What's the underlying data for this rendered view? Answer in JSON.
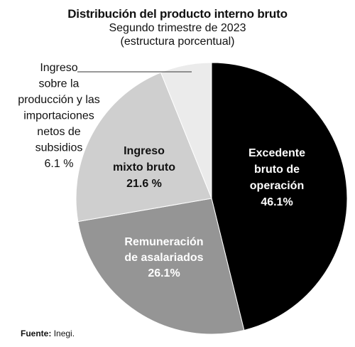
{
  "title": "Distribución del producto interno bruto",
  "subtitle_1": "Segundo trimestre de 2023",
  "subtitle_2": "(estructura porcentual)",
  "source_label": "Fuente:",
  "source_value": "Inegi.",
  "chart_data": {
    "type": "pie",
    "title": "Distribución del producto interno bruto",
    "slices": [
      {
        "label_lines": [
          "Excedente",
          "bruto de",
          "operación"
        ],
        "value_text": "46.1%",
        "value": 46.1,
        "color": "#000000",
        "text_color": "#ffffff",
        "label_position": "inside"
      },
      {
        "label_lines": [
          "Remuneración",
          "de asalariados"
        ],
        "value_text": "26.1%",
        "value": 26.1,
        "color": "#959595",
        "text_color": "#ffffff",
        "label_position": "inside"
      },
      {
        "label_lines": [
          "Ingreso",
          "mixto bruto"
        ],
        "value_text": "21.6 %",
        "value": 21.6,
        "color": "#cfcfcf",
        "text_color": "#111111",
        "label_position": "inside"
      },
      {
        "label_lines": [
          "Ingreso",
          "sobre la",
          "producción y las",
          "importaciones",
          "netos de",
          "subsidios"
        ],
        "value_text": "6.1 %",
        "value": 6.1,
        "color": "#ebebeb",
        "text_color": "#111111",
        "label_position": "outside-left"
      }
    ]
  }
}
